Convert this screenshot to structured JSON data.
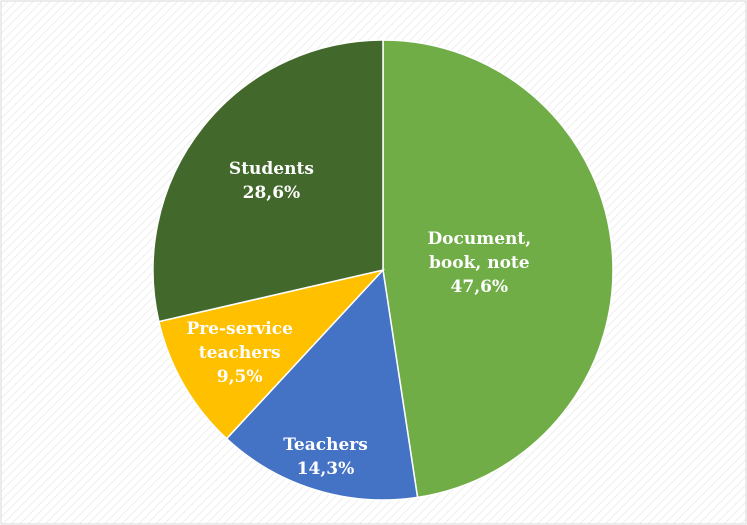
{
  "chart_data": {
    "type": "pie",
    "categories": [
      "Document, book, note",
      "Teachers",
      "Pre-service teachers",
      "Students"
    ],
    "values": [
      47.6,
      14.3,
      9.5,
      28.6
    ],
    "value_labels": [
      "47,6%",
      "14,3%",
      "9,5%",
      "28,6%"
    ],
    "colors": [
      "#70ad47",
      "#4472c4",
      "#ffc000",
      "#43682b"
    ]
  }
}
